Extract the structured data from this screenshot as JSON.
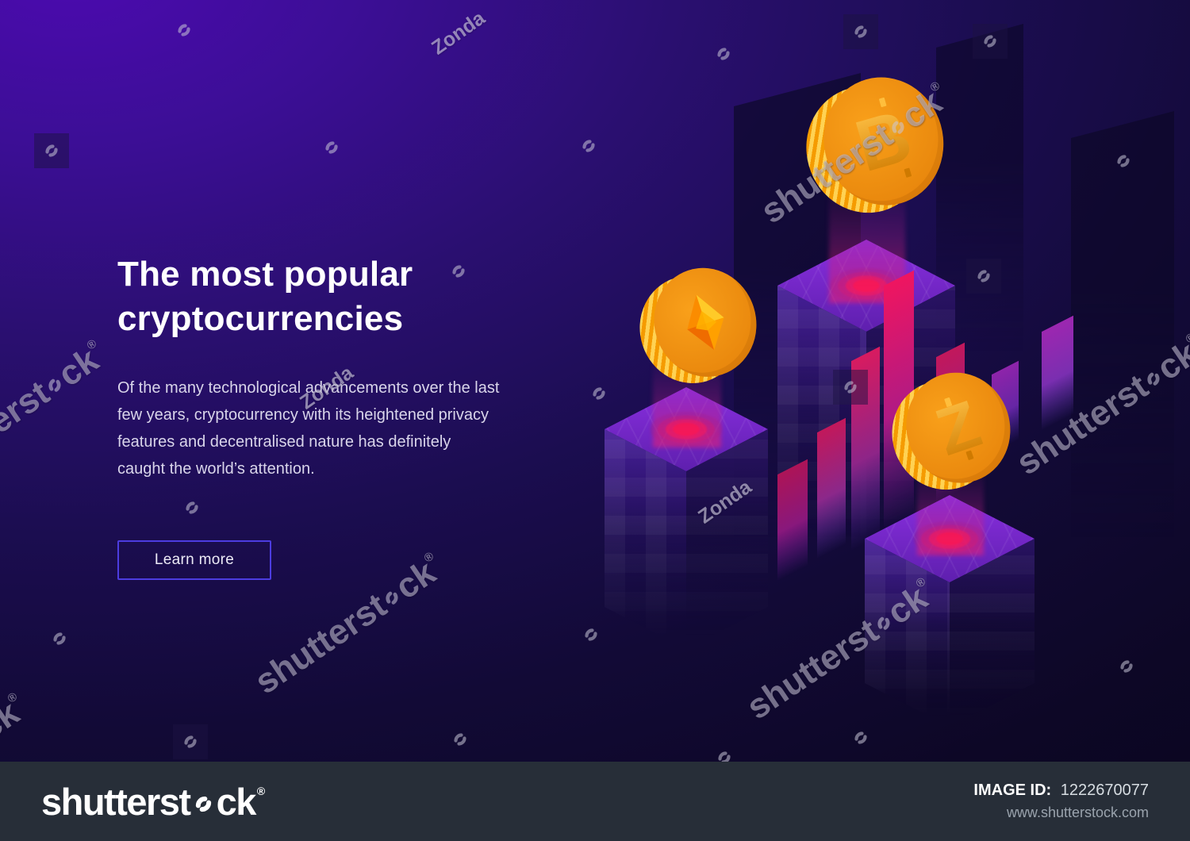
{
  "hero": {
    "title_line1": "The most popular",
    "title_line2": "cryptocurrencies",
    "paragraph_lines": [
      "Of the many technological advancements over the last",
      "few years, cryptocurrency with its heightened privacy",
      "features and decentralised nature has definitely",
      "caught the world’s attention."
    ],
    "button_label": "Learn more"
  },
  "illustration": {
    "coins": [
      {
        "id": "bitcoin",
        "symbol": "B"
      },
      {
        "id": "ethereum",
        "symbol": ""
      },
      {
        "id": "zcash",
        "symbol": "Z"
      }
    ],
    "colors": {
      "coin_face": "#ec8c10",
      "coin_rim_light": "#ffd253",
      "coin_rim_dark": "#f59b00",
      "glow_red": "#ff1140",
      "bar_pink": "#ef1560",
      "bar_purple": "#7b1fa2",
      "platform_purple": "#8a2fe0"
    }
  },
  "watermarks": {
    "brand_prefix": "shutterst",
    "brand_suffix": "ck",
    "registered_mark": "®",
    "partner_mark": "Zonda"
  },
  "footer": {
    "logo_prefix": "shutterst",
    "logo_suffix": "ck",
    "registered_mark": "®",
    "image_id_label": "IMAGE ID:",
    "image_id_value": "1222670077",
    "website_url": "www.shutterstock.com"
  },
  "colors": {
    "background_top_left": "#4c0ab0",
    "background_bottom_right": "#0b0620",
    "footer_background": "#272e38",
    "button_border": "#4c3ce0",
    "heading_text": "#ffffff",
    "body_text": "#d9d5ea",
    "watermark_text": "#cac7d8"
  }
}
